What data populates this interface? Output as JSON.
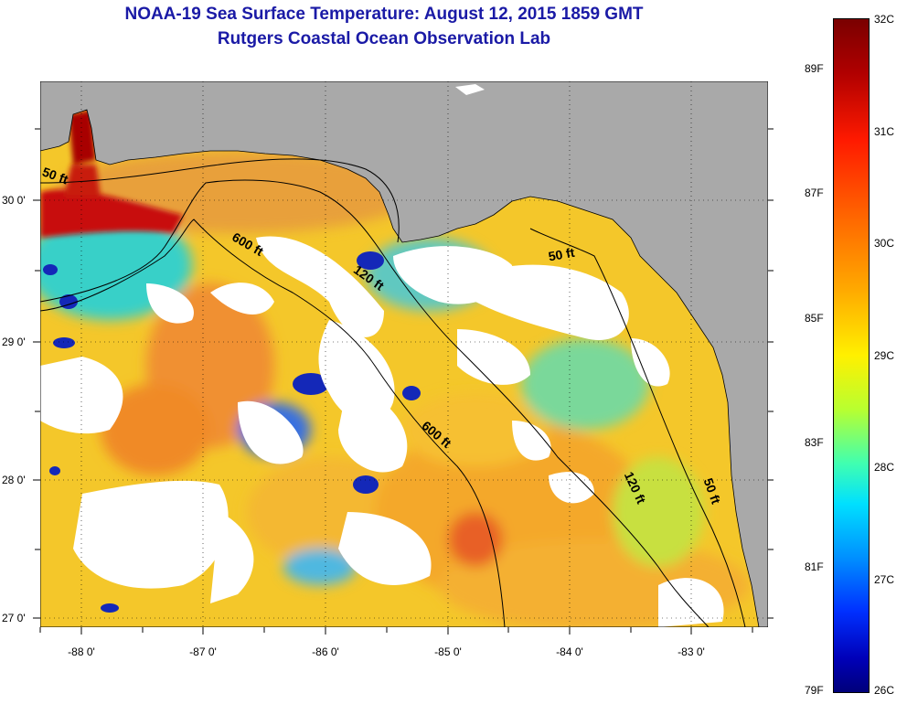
{
  "title": {
    "line1": "NOAA-19 Sea Surface Temperature:  August 12, 2015 1859 GMT",
    "line2": "Rutgers Coastal Ocean Observation Lab"
  },
  "y_axis_labels": [
    "30 0'",
    "29 0'",
    "28 0'",
    "27 0'"
  ],
  "x_axis_labels": [
    "-88 0'",
    "-87 0'",
    "-86 0'",
    "-85 0'",
    "-84 0'",
    "-83 0'"
  ],
  "contour_labels": [
    "50 ft",
    "600 ft",
    "120 ft",
    "50 ft",
    "600 ft",
    "120 ft",
    "50 ft"
  ],
  "colorbar": {
    "celsius": [
      "32C",
      "31C",
      "30C",
      "29C",
      "28C",
      "27C",
      "26C"
    ],
    "fahrenheit": [
      "89F",
      "87F",
      "85F",
      "83F",
      "81F",
      "79F"
    ]
  },
  "colors": {
    "land": "#a9a9a9",
    "cloud": "#ffffff",
    "title": "#1a1aa6"
  }
}
